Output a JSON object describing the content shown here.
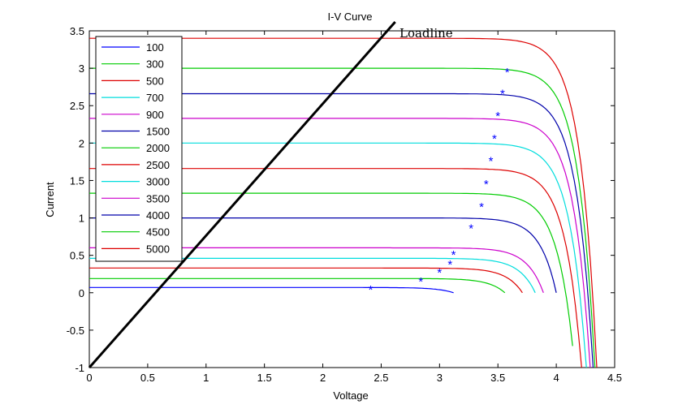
{
  "chart_data": {
    "type": "line",
    "title": "I-V Curve",
    "xlabel": "Voltage",
    "ylabel": "Current",
    "xlim": [
      0,
      4.5
    ],
    "ylim": [
      -1,
      3.5
    ],
    "xticks": [
      "0",
      "0.5",
      "1",
      "1.5",
      "2",
      "2.5",
      "3",
      "3.5",
      "4",
      "4.5"
    ],
    "yticks": [
      "-1",
      "-0.5",
      "0",
      "0.5",
      "1",
      "1.5",
      "2",
      "2.5",
      "3",
      "3.5"
    ],
    "grid": false,
    "legend_position": "top-left",
    "loadline": {
      "label": "Loadline",
      "x": [
        0,
        2.62
      ],
      "y": [
        -1,
        3.59
      ]
    },
    "series": [
      {
        "name": "100",
        "color": "#0000ff",
        "isc": 0.07,
        "voc": 3.12,
        "mpp": [
          2.41,
          0.05
        ]
      },
      {
        "name": "300",
        "color": "#00cc00",
        "isc": 0.19,
        "voc": 3.56,
        "mpp": [
          2.84,
          0.16
        ]
      },
      {
        "name": "500",
        "color": "#dd0000",
        "isc": 0.33,
        "voc": 3.71,
        "mpp": [
          3.0,
          0.28
        ]
      },
      {
        "name": "700",
        "color": "#00dddd",
        "isc": 0.46,
        "voc": 3.82,
        "mpp": [
          3.09,
          0.39
        ]
      },
      {
        "name": "900",
        "color": "#cc00cc",
        "isc": 0.6,
        "voc": 3.89,
        "mpp": [
          3.12,
          0.52
        ]
      },
      {
        "name": "1500",
        "color": "#0000aa",
        "isc": 1.0,
        "voc": 4.0,
        "mpp": [
          3.27,
          0.87
        ]
      },
      {
        "name": "2000",
        "color": "#00cc00",
        "isc": 1.33,
        "voc": 4.08,
        "mpp": [
          3.36,
          1.16
        ]
      },
      {
        "name": "2500",
        "color": "#dd0000",
        "isc": 1.66,
        "voc": 4.15,
        "mpp": [
          3.4,
          1.46
        ]
      },
      {
        "name": "3000",
        "color": "#00dddd",
        "isc": 2.0,
        "voc": 4.2,
        "mpp": [
          3.44,
          1.77
        ]
      },
      {
        "name": "3500",
        "color": "#cc00cc",
        "isc": 2.33,
        "voc": 4.24,
        "mpp": [
          3.47,
          2.07
        ]
      },
      {
        "name": "4000",
        "color": "#0000aa",
        "isc": 2.66,
        "voc": 4.27,
        "mpp": [
          3.5,
          2.37
        ]
      },
      {
        "name": "4500",
        "color": "#00cc00",
        "isc": 3.0,
        "voc": 4.29,
        "mpp": [
          3.54,
          2.67
        ]
      },
      {
        "name": "5000",
        "color": "#dd0000",
        "isc": 3.4,
        "voc": 4.31,
        "mpp": [
          3.58,
          2.96
        ]
      }
    ]
  }
}
